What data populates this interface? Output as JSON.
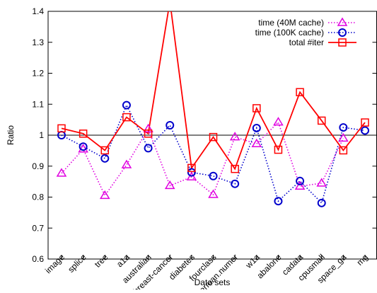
{
  "chart_data": {
    "type": "line",
    "xlabel": "Data sets",
    "ylabel": "Ratio",
    "ylim": [
      0.6,
      1.4
    ],
    "yticks": [
      "0.6",
      "0.7",
      "0.8",
      "0.9",
      "1",
      "1.1",
      "1.2",
      "1.3",
      "1.4"
    ],
    "grid": false,
    "reference_line": 1.0,
    "legend_position": "top-right",
    "categories": [
      "image",
      "splice",
      "tree",
      "a1a",
      "australian",
      "breast-cancer",
      "diabetes",
      "fourclass",
      "german.numer",
      "w1a",
      "abalone",
      "cadata",
      "cpusmall",
      "space_ga",
      "mg"
    ],
    "series": [
      {
        "name": "time (40M cache)",
        "color": "#e000e0",
        "style": "dotted",
        "marker": "triangle",
        "values": [
          0.877,
          0.955,
          0.805,
          0.904,
          1.02,
          0.837,
          0.865,
          0.808,
          0.994,
          0.972,
          1.042,
          0.835,
          0.845,
          0.99,
          null
        ]
      },
      {
        "name": "time (100K cache)",
        "color": "#0000cc",
        "style": "dotted",
        "marker": "circle",
        "values": [
          1.0,
          0.963,
          0.925,
          1.097,
          0.958,
          1.032,
          0.88,
          0.868,
          0.843,
          1.023,
          0.787,
          0.852,
          0.781,
          1.025,
          1.015
        ]
      },
      {
        "name": "total #iter",
        "color": "#ff0000",
        "style": "solid",
        "marker": "square",
        "values": [
          1.022,
          1.005,
          0.951,
          1.058,
          1.005,
          1.432,
          0.894,
          0.994,
          0.891,
          1.087,
          0.953,
          1.139,
          1.047,
          0.951,
          1.041
        ]
      }
    ]
  }
}
